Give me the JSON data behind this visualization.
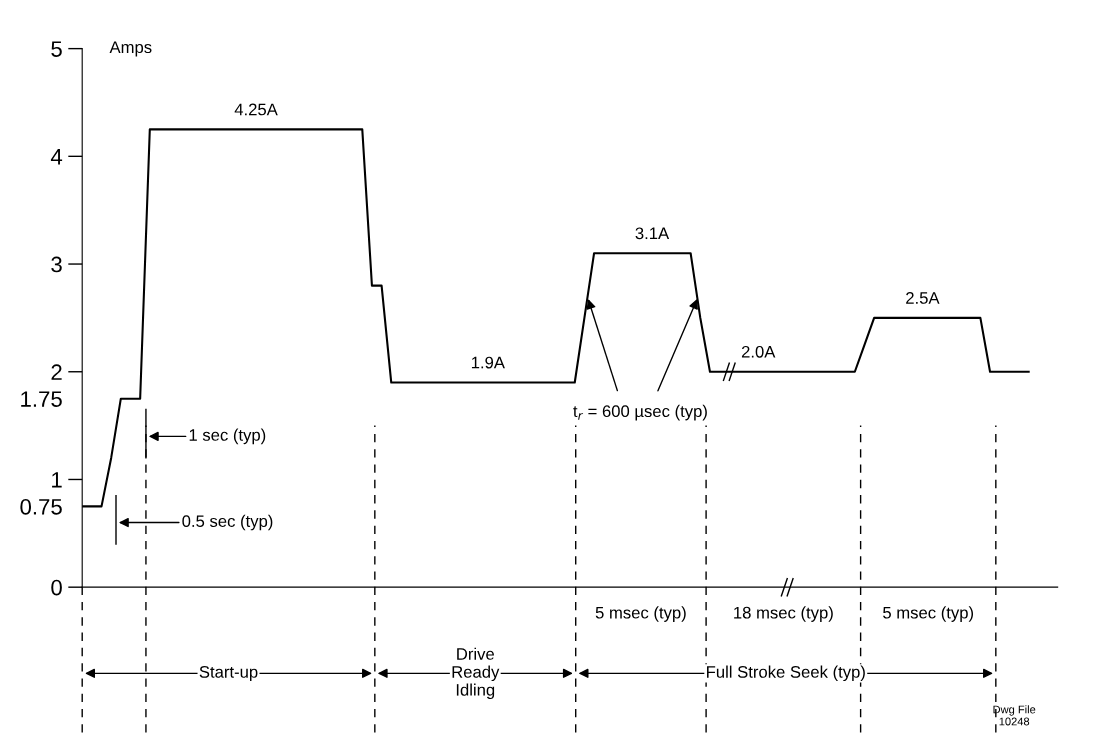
{
  "chart_data": {
    "type": "line",
    "ylabel": "Amps",
    "categories": [
      null,
      null,
      null,
      null,
      null,
      null,
      null,
      null,
      null,
      null,
      null,
      null,
      null,
      null,
      null,
      null,
      null,
      null,
      null,
      null,
      null,
      null,
      null,
      null,
      null,
      null,
      null,
      null,
      null,
      null,
      null,
      null,
      null,
      null,
      null,
      null,
      null,
      null,
      null,
      null,
      null,
      null,
      null,
      null,
      null,
      null,
      null,
      null,
      null,
      null,
      null,
      null,
      null,
      null,
      null,
      null,
      null,
      null,
      null,
      null,
      null,
      null,
      null,
      null,
      null,
      null,
      null,
      null,
      null,
      null,
      null,
      null,
      null,
      null,
      null,
      null,
      null,
      null,
      null,
      null,
      null,
      null,
      null,
      null,
      null,
      null,
      null,
      null,
      null,
      null,
      null,
      null,
      null,
      null,
      null,
      null,
      null,
      null,
      null
    ],
    "values": [
      0.75,
      0.75,
      0.75,
      1.2,
      1.75,
      1.75,
      1.75,
      4.25,
      4.25,
      4.25,
      4.25,
      4.25,
      4.25,
      4.25,
      4.25,
      4.25,
      4.25,
      4.25,
      4.25,
      4.25,
      4.25,
      4.25,
      4.25,
      4.25,
      4.25,
      4.25,
      4.25,
      4.25,
      4.25,
      4.25,
      2.8,
      2.8,
      1.9,
      1.9,
      1.9,
      1.9,
      1.9,
      1.9,
      1.9,
      1.9,
      1.9,
      1.9,
      1.9,
      1.9,
      1.9,
      1.9,
      1.9,
      1.9,
      1.9,
      1.9,
      1.9,
      1.9,
      2.5,
      3.1,
      3.1,
      3.1,
      3.1,
      3.1,
      3.1,
      3.1,
      3.1,
      3.1,
      3.1,
      3.1,
      2.5,
      2.0,
      2.0,
      2.0,
      2.0,
      2.0,
      2.0,
      2.0,
      2.0,
      2.0,
      2.0,
      2.0,
      2.0,
      2.0,
      2.0,
      2.0,
      2.0,
      2.25,
      2.5,
      2.5,
      2.5,
      2.5,
      2.5,
      2.5,
      2.5,
      2.5,
      2.5,
      2.5,
      2.5,
      2.5,
      2.0,
      2.0,
      2.0,
      2.0,
      2.0
    ],
    "value_labels": [
      null,
      null,
      null,
      null,
      null,
      null,
      null,
      null,
      null,
      null,
      null,
      null,
      null,
      null,
      null,
      null,
      null,
      null,
      "4.25A",
      null,
      null,
      null,
      null,
      null,
      null,
      null,
      null,
      null,
      null,
      null,
      null,
      null,
      null,
      null,
      null,
      null,
      null,
      null,
      null,
      null,
      null,
      null,
      "1.9A",
      null,
      null,
      null,
      null,
      null,
      null,
      null,
      null,
      null,
      null,
      null,
      null,
      null,
      null,
      null,
      null,
      "3.1A",
      null,
      null,
      null,
      null,
      null,
      null,
      null,
      null,
      null,
      null,
      "2.0A",
      null,
      null,
      null,
      null,
      null,
      null,
      null,
      null,
      null,
      null,
      null,
      null,
      null,
      null,
      null,
      null,
      "2.5A",
      null,
      null,
      null,
      null,
      null,
      null,
      null,
      null,
      null,
      null,
      null
    ],
    "color": "#000000",
    "line_style": "solid",
    "ylim": [
      0,
      5
    ],
    "yticks": [
      0,
      {
        "value": 0.75,
        "label": "0.75"
      },
      1,
      {
        "value": 1.75,
        "label": "1.75"
      },
      2,
      3,
      4,
      5
    ],
    "annotations": [
      "1 sec (typ)",
      "0.5 sec (typ)",
      "t$_{r}$ = 600 µsec (typ)",
      "5 msec (typ)",
      "18 msec (typ)",
      "5 msec (typ)",
      "Start-up",
      "Drive\nReady\nIdling",
      "Full Stroke Seek (typ)",
      "Dwg File\n10248"
    ],
    "grid": false,
    "legend": false
  }
}
